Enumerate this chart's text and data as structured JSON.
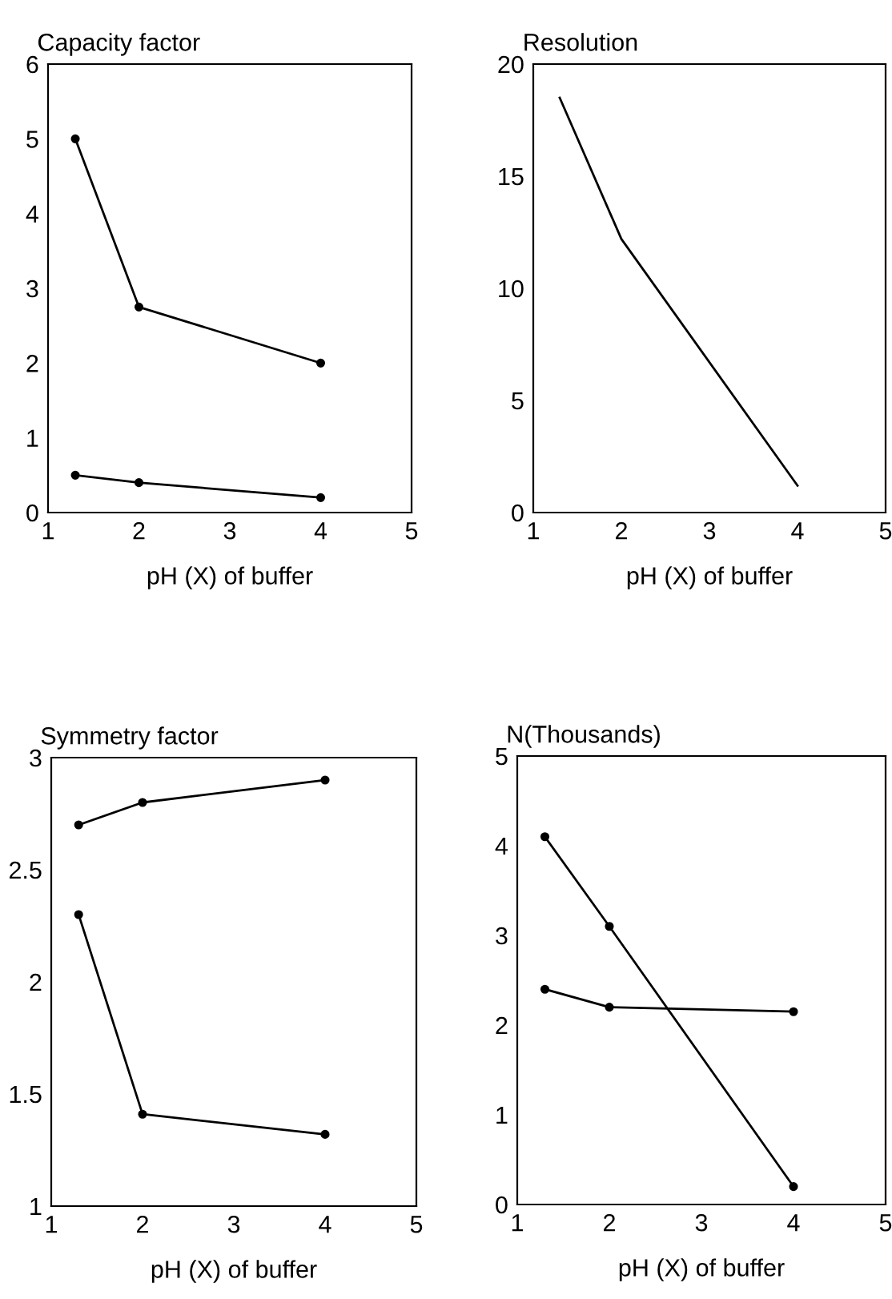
{
  "chart_data": [
    {
      "type": "line",
      "title": "Capacity factor",
      "xlabel": "pH (X) of buffer",
      "x": [
        1.3,
        2,
        4
      ],
      "xlim": [
        1,
        5
      ],
      "xticks": [
        1,
        2,
        3,
        4,
        5
      ],
      "ylim": [
        0,
        6
      ],
      "yticks": [
        0,
        1,
        2,
        3,
        4,
        5,
        6
      ],
      "marker": "circle",
      "grid": false,
      "series": [
        {
          "color": "#000000",
          "values": [
            5.0,
            2.75,
            2.0
          ]
        },
        {
          "color": "#000000",
          "values": [
            0.5,
            0.4,
            0.2
          ]
        }
      ]
    },
    {
      "type": "line",
      "title": "Resolution",
      "xlabel": "pH (X) of buffer",
      "x": [
        1.3,
        2,
        4
      ],
      "xlim": [
        1,
        5
      ],
      "xticks": [
        1,
        2,
        3,
        4,
        5
      ],
      "ylim": [
        0,
        20
      ],
      "yticks": [
        0,
        5,
        10,
        15,
        20
      ],
      "marker": "none",
      "grid": false,
      "series": [
        {
          "color": "#000000",
          "values": [
            18.5,
            12.2,
            1.2
          ]
        }
      ]
    },
    {
      "type": "line",
      "title": "Symmetry factor",
      "xlabel": "pH (X) of buffer",
      "x": [
        1.3,
        2,
        4
      ],
      "xlim": [
        1,
        5
      ],
      "xticks": [
        1,
        2,
        3,
        4,
        5
      ],
      "ylim": [
        1,
        3
      ],
      "yticks": [
        1,
        1.5,
        2,
        2.5,
        3
      ],
      "marker": "circle",
      "grid": false,
      "series": [
        {
          "color": "#000000",
          "values": [
            2.7,
            2.8,
            2.9
          ]
        },
        {
          "color": "#000000",
          "values": [
            2.3,
            1.41,
            1.32
          ]
        }
      ]
    },
    {
      "type": "line",
      "title": "N(Thousands)",
      "xlabel": "pH (X) of buffer",
      "x": [
        1.3,
        2,
        4
      ],
      "xlim": [
        1,
        5
      ],
      "xticks": [
        1,
        2,
        3,
        4,
        5
      ],
      "ylim": [
        0,
        5
      ],
      "yticks": [
        0,
        1,
        2,
        3,
        4,
        5
      ],
      "marker": "circle",
      "grid": false,
      "series": [
        {
          "color": "#000000",
          "values": [
            4.1,
            3.1,
            0.2
          ]
        },
        {
          "color": "#000000",
          "values": [
            2.4,
            2.2,
            2.15
          ]
        }
      ]
    }
  ]
}
